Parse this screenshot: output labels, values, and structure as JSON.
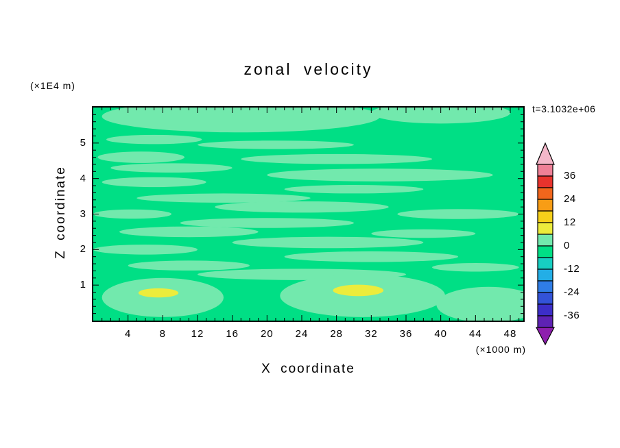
{
  "title": "zonal velocity",
  "y_axis_unit": "(×1E4 m)",
  "x_axis_unit": "(×1000 m)",
  "time_label": "t=3.1032e+06",
  "x_label": "X coordinate",
  "y_label": "Z coordinate",
  "chart_data": {
    "type": "heatmap",
    "subtype": "filled-contour",
    "title": "zonal velocity",
    "xlabel": "X coordinate",
    "ylabel": "Z coordinate",
    "x_unit": "(×1000 m)",
    "y_unit": "(×1E4 m)",
    "time": "t=3.1032e+06",
    "xlim": [
      0,
      49.5
    ],
    "ylim": [
      0,
      6
    ],
    "x_major_ticks": [
      4,
      8,
      12,
      16,
      20,
      24,
      28,
      32,
      36,
      40,
      44,
      48
    ],
    "y_major_ticks": [
      1,
      2,
      3,
      4,
      5
    ],
    "x_minor_step": 1,
    "y_minor_step": 0.2,
    "grid": false,
    "colorbar": {
      "position": "right",
      "labels": [
        "36",
        "24",
        "12",
        "0",
        "-12",
        "-24",
        "-36"
      ],
      "levels_top_to_bottom": [
        42,
        36,
        30,
        24,
        18,
        12,
        6,
        0,
        -6,
        -12,
        -18,
        -24,
        -30,
        -36,
        -42
      ],
      "segment_colors_top_to_bottom": [
        "#ef8097",
        "#e8332d",
        "#f2661c",
        "#f89d15",
        "#f6d01a",
        "#ecec3c",
        "#72e9ad",
        "#00df85",
        "#17cfc2",
        "#23aee6",
        "#2f7de6",
        "#3353d8",
        "#3c2ec8",
        "#5e22b4"
      ],
      "arrow_top_color": "#f3b7c9",
      "arrow_bottom_color": "#8e1fae"
    },
    "field": {
      "description": "zonal velocity field, mostly near 0 (spring green, level -6..0) with thin horizontal pale-green streaks (level 0..6) and two small yellow local maxima (level 6..12) near z=0.8 at x=8 and x=31",
      "background_color": "#00df85",
      "streak_color": "#72e9ad",
      "max_color": "#ecec3c",
      "streaks": [
        [
          17,
          5.75,
          16,
          0.45
        ],
        [
          40,
          5.85,
          8,
          0.3
        ],
        [
          7,
          5.1,
          5.5,
          0.13
        ],
        [
          21,
          4.95,
          9,
          0.12
        ],
        [
          5.5,
          4.6,
          5,
          0.16
        ],
        [
          28,
          4.55,
          11,
          0.14
        ],
        [
          9,
          4.3,
          7,
          0.13
        ],
        [
          33,
          4.1,
          13,
          0.18
        ],
        [
          7,
          3.9,
          6,
          0.14
        ],
        [
          30,
          3.7,
          8,
          0.12
        ],
        [
          15,
          3.45,
          10,
          0.13
        ],
        [
          24,
          3.2,
          10,
          0.16
        ],
        [
          4.5,
          3.0,
          4.5,
          0.13
        ],
        [
          42,
          3.0,
          7,
          0.14
        ],
        [
          20,
          2.75,
          10,
          0.14
        ],
        [
          11,
          2.5,
          8,
          0.15
        ],
        [
          38,
          2.45,
          6,
          0.12
        ],
        [
          27,
          2.2,
          11,
          0.16
        ],
        [
          6,
          2.0,
          6,
          0.14
        ],
        [
          32,
          1.8,
          10,
          0.15
        ],
        [
          11,
          1.55,
          7,
          0.14
        ],
        [
          44,
          1.5,
          5,
          0.12
        ],
        [
          24,
          1.3,
          12,
          0.16
        ],
        [
          8,
          0.65,
          7,
          0.55
        ],
        [
          31,
          0.7,
          9.5,
          0.6
        ],
        [
          45.5,
          0.45,
          6,
          0.5
        ]
      ],
      "maxima": [
        [
          7.5,
          0.78,
          2.3,
          0.13
        ],
        [
          30.5,
          0.85,
          2.9,
          0.16
        ]
      ]
    }
  }
}
